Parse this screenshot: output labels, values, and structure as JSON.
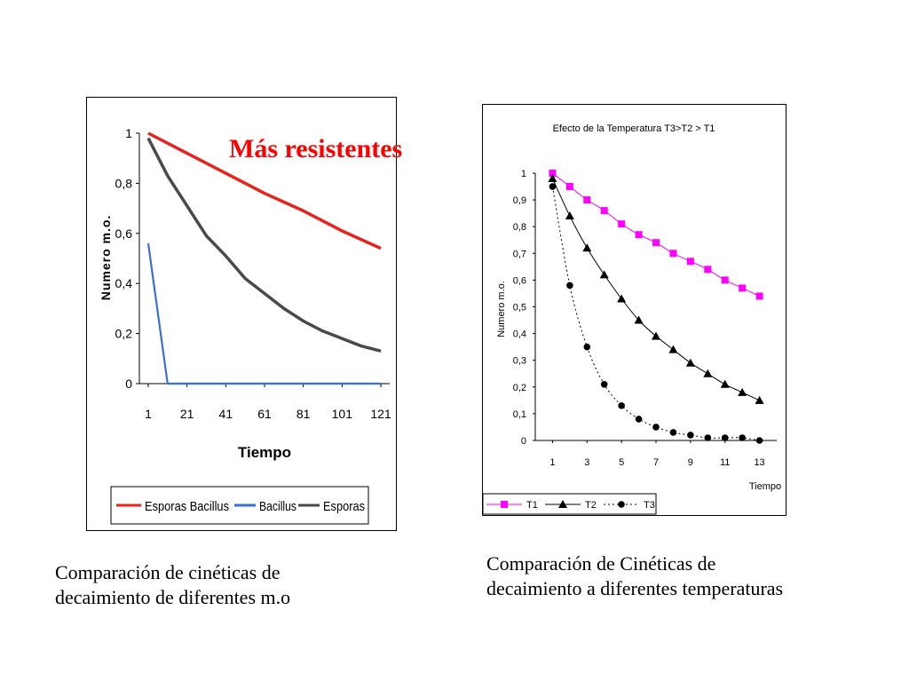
{
  "callout": "Más resistentes",
  "captions": {
    "left": [
      "Comparación de cinéticas de",
      "decaimiento de diferentes m.o"
    ],
    "right": [
      "Comparación de Cinéticas de",
      "decaimiento a diferentes  temperaturas"
    ]
  },
  "chart_data": [
    {
      "type": "line",
      "title": "",
      "xlabel": "Tiempo",
      "ylabel": "Numero m.o.",
      "xlim": [
        1,
        121
      ],
      "ylim": [
        0,
        1
      ],
      "x_ticks": [
        1,
        21,
        41,
        61,
        81,
        101,
        121
      ],
      "y_ticks": [
        0,
        0.2,
        0.4,
        0.6,
        0.8,
        1
      ],
      "y_tick_labels": [
        "0",
        "0,2",
        "0,4",
        "0,6",
        "0,8",
        "1"
      ],
      "grid": false,
      "legend_position": "bottom",
      "series": [
        {
          "name": "Esporas Bacillus",
          "color": "#e8231d",
          "x": [
            1,
            21,
            41,
            61,
            81,
            101,
            121
          ],
          "y": [
            1.0,
            0.92,
            0.84,
            0.76,
            0.69,
            0.61,
            0.54
          ]
        },
        {
          "name": "Bacillus",
          "color": "#3a6fd8",
          "x": [
            1,
            11,
            21,
            41,
            61,
            81,
            101,
            121
          ],
          "y": [
            0.56,
            0.0,
            0.0,
            0.0,
            0.0,
            0.0,
            0.0,
            0.0
          ]
        },
        {
          "name": "Esporas",
          "color": "#4a4a4a",
          "x": [
            1,
            11,
            21,
            31,
            41,
            51,
            61,
            71,
            81,
            91,
            101,
            111,
            121
          ],
          "y": [
            0.98,
            0.83,
            0.71,
            0.59,
            0.51,
            0.42,
            0.36,
            0.3,
            0.25,
            0.21,
            0.18,
            0.15,
            0.13
          ]
        }
      ]
    },
    {
      "type": "line",
      "title": "Efecto de la Temperatura   T3>T2 > T1",
      "xlabel": "Tiempo",
      "ylabel": "Numero m.o.",
      "xlim": [
        0,
        14
      ],
      "ylim": [
        0,
        1
      ],
      "x_ticks": [
        1,
        3,
        5,
        7,
        9,
        11,
        13
      ],
      "y_ticks": [
        0,
        0.1,
        0.2,
        0.3,
        0.4,
        0.5,
        0.6,
        0.7,
        0.8,
        0.9,
        1
      ],
      "y_tick_labels": [
        "0",
        "0,1",
        "0,2",
        "0,3",
        "0,4",
        "0,5",
        "0,6",
        "0,7",
        "0,8",
        "0,9",
        "1"
      ],
      "grid": false,
      "legend_position": "bottom",
      "series": [
        {
          "name": "T1",
          "color": "#ff00ff",
          "marker": "square",
          "x": [
            1,
            2,
            3,
            4,
            5,
            6,
            7,
            8,
            9,
            10,
            11,
            12,
            13
          ],
          "y": [
            1.0,
            0.95,
            0.9,
            0.86,
            0.81,
            0.77,
            0.74,
            0.7,
            0.67,
            0.64,
            0.6,
            0.57,
            0.54
          ]
        },
        {
          "name": "T2",
          "color": "#000000",
          "marker": "triangle",
          "x": [
            1,
            2,
            3,
            4,
            5,
            6,
            7,
            8,
            9,
            10,
            11,
            12,
            13
          ],
          "y": [
            0.98,
            0.84,
            0.72,
            0.62,
            0.53,
            0.45,
            0.39,
            0.34,
            0.29,
            0.25,
            0.21,
            0.18,
            0.15
          ]
        },
        {
          "name": "T3",
          "color": "#000000",
          "marker": "circle",
          "dashed": true,
          "x": [
            1,
            2,
            3,
            4,
            5,
            6,
            7,
            8,
            9,
            10,
            11,
            12,
            13
          ],
          "y": [
            0.95,
            0.58,
            0.35,
            0.21,
            0.13,
            0.08,
            0.05,
            0.03,
            0.02,
            0.01,
            0.01,
            0.01,
            0.0
          ]
        }
      ]
    }
  ]
}
